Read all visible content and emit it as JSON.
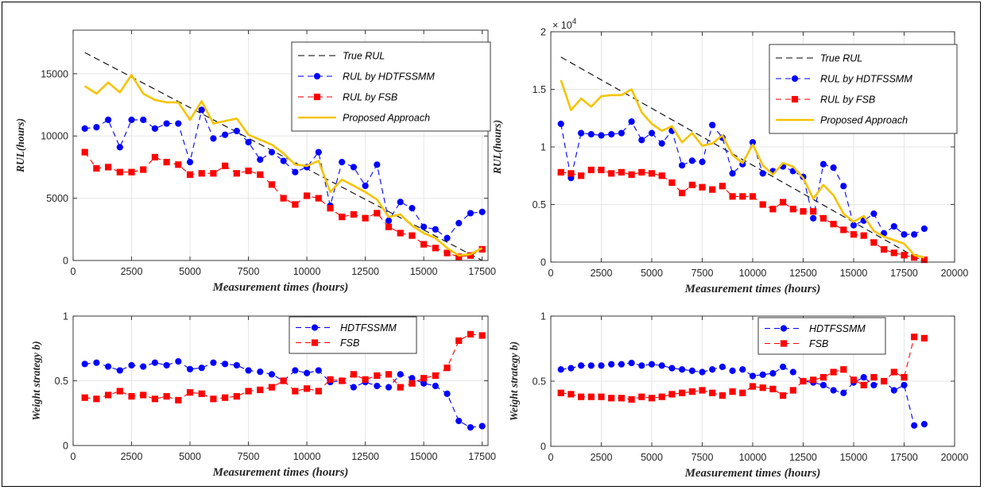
{
  "chart_data": [
    {
      "id": "top_left",
      "type": "line",
      "xlabel": "Measurement times (hours)",
      "ylabel": "RUL(hours)",
      "xlim": [
        0,
        17750
      ],
      "ylim": [
        0,
        18500
      ],
      "xticks": [
        0,
        2500,
        5000,
        7500,
        10000,
        12500,
        15000,
        17500
      ],
      "yticks": [
        0,
        5000,
        10000,
        15000
      ],
      "grid": true,
      "legend": "top-right",
      "series": [
        {
          "name": "True RUL",
          "color": "#000000",
          "style": "dashed",
          "marker": "none",
          "x": [
            500,
            17500
          ],
          "y": [
            16700,
            0
          ]
        },
        {
          "name": "RUL by HDTFSSMM",
          "color": "#0000ff",
          "style": "dashed",
          "marker": "circle",
          "x": [
            500,
            1000,
            1500,
            2000,
            2500,
            3000,
            3500,
            4000,
            4500,
            5000,
            5500,
            6000,
            6500,
            7000,
            7500,
            8000,
            8500,
            9000,
            9500,
            10000,
            10500,
            11000,
            11500,
            12000,
            12500,
            13000,
            13500,
            14000,
            14500,
            15000,
            15500,
            16000,
            16500,
            17000,
            17500
          ],
          "y": [
            10600,
            10700,
            11300,
            9100,
            11300,
            11300,
            10600,
            11000,
            11000,
            7900,
            12100,
            9800,
            10100,
            10400,
            9500,
            8100,
            8700,
            8000,
            7100,
            7500,
            8700,
            4400,
            7900,
            7500,
            6000,
            7700,
            3200,
            4700,
            4200,
            2700,
            2500,
            1800,
            3000,
            3800,
            3900
          ]
        },
        {
          "name": "RUL by FSB",
          "color": "#ff0000",
          "style": "dashed",
          "marker": "square",
          "x": [
            500,
            1000,
            1500,
            2000,
            2500,
            3000,
            3500,
            4000,
            4500,
            5000,
            5500,
            6000,
            6500,
            7000,
            7500,
            8000,
            8500,
            9000,
            9500,
            10000,
            10500,
            11000,
            11500,
            12000,
            12500,
            13000,
            13500,
            14000,
            14500,
            15000,
            15500,
            16000,
            16500,
            17000,
            17500
          ],
          "y": [
            8700,
            7400,
            7500,
            7100,
            7100,
            7300,
            8300,
            7900,
            7700,
            6900,
            7000,
            7000,
            7600,
            7000,
            7200,
            6900,
            6100,
            5000,
            4500,
            5200,
            5000,
            4200,
            3500,
            3700,
            3400,
            3800,
            2700,
            2200,
            2000,
            1300,
            1000,
            600,
            300,
            400,
            900
          ]
        },
        {
          "name": "Proposed Approach",
          "color": "#f5c400",
          "style": "solid",
          "marker": "none",
          "x": [
            500,
            1000,
            1500,
            2000,
            2500,
            3000,
            3500,
            4000,
            4500,
            5000,
            5500,
            6000,
            6500,
            7000,
            7500,
            8000,
            8500,
            9000,
            9500,
            10000,
            10500,
            11000,
            11500,
            12000,
            12500,
            13000,
            13500,
            14000,
            14500,
            15000,
            15500,
            16000,
            16500,
            17000,
            17500
          ],
          "y": [
            14000,
            13400,
            14300,
            13500,
            14900,
            13400,
            12900,
            12700,
            12700,
            11300,
            12800,
            11000,
            11200,
            11400,
            10100,
            9700,
            9300,
            8600,
            7700,
            7600,
            8000,
            5500,
            6500,
            6000,
            5500,
            4900,
            3500,
            3700,
            2800,
            2200,
            1800,
            1000,
            400,
            500,
            1000
          ]
        }
      ]
    },
    {
      "id": "top_right",
      "type": "line",
      "xlabel": "Measurement times (hours)",
      "ylabel": "RUL(hours)",
      "ylabel_multiplier": "× 10",
      "ylabel_multiplier_exp": "4",
      "xlim": [
        0,
        20000
      ],
      "ylim": [
        0,
        2
      ],
      "xticks": [
        0,
        2500,
        5000,
        7500,
        10000,
        12500,
        15000,
        17500,
        20000
      ],
      "yticks": [
        0,
        0.5,
        1,
        1.5,
        2
      ],
      "grid": true,
      "legend": "top-right",
      "series": [
        {
          "name": "True RUL",
          "color": "#000000",
          "style": "dashed",
          "marker": "none",
          "x": [
            500,
            18500
          ],
          "y": [
            1.78,
            0
          ]
        },
        {
          "name": "RUL by HDTFSSMM",
          "color": "#0000ff",
          "style": "dashed",
          "marker": "circle",
          "x": [
            500,
            1000,
            1500,
            2000,
            2500,
            3000,
            3500,
            4000,
            4500,
            5000,
            5500,
            6000,
            6500,
            7000,
            7500,
            8000,
            8500,
            9000,
            9500,
            10000,
            10500,
            11000,
            11500,
            12000,
            12500,
            13000,
            13500,
            14000,
            14500,
            15000,
            15500,
            16000,
            16500,
            17000,
            17500,
            18000,
            18500
          ],
          "y": [
            1.2,
            0.73,
            1.12,
            1.11,
            1.1,
            1.11,
            1.12,
            1.22,
            1.06,
            1.12,
            1.03,
            1.14,
            0.84,
            0.88,
            0.87,
            1.19,
            1.08,
            0.77,
            0.85,
            1.04,
            0.77,
            0.79,
            0.83,
            0.79,
            0.74,
            0.38,
            0.85,
            0.82,
            0.66,
            0.32,
            0.36,
            0.42,
            0.25,
            0.31,
            0.24,
            0.24,
            0.29
          ]
        },
        {
          "name": "RUL by FSB",
          "color": "#ff0000",
          "style": "dashed",
          "marker": "square",
          "x": [
            500,
            1000,
            1500,
            2000,
            2500,
            3000,
            3500,
            4000,
            4500,
            5000,
            5500,
            6000,
            6500,
            7000,
            7500,
            8000,
            8500,
            9000,
            9500,
            10000,
            10500,
            11000,
            11500,
            12000,
            12500,
            13000,
            13500,
            14000,
            14500,
            15000,
            15500,
            16000,
            16500,
            17000,
            17500,
            18000,
            18500
          ],
          "y": [
            0.78,
            0.77,
            0.75,
            0.8,
            0.8,
            0.77,
            0.78,
            0.76,
            0.78,
            0.77,
            0.75,
            0.69,
            0.6,
            0.67,
            0.65,
            0.63,
            0.66,
            0.57,
            0.57,
            0.57,
            0.5,
            0.46,
            0.52,
            0.46,
            0.44,
            0.44,
            0.38,
            0.33,
            0.28,
            0.24,
            0.23,
            0.17,
            0.11,
            0.08,
            0.06,
            0.04,
            0.02
          ]
        },
        {
          "name": "Proposed Approach",
          "color": "#f5c400",
          "style": "solid",
          "marker": "none",
          "x": [
            500,
            1000,
            1500,
            2000,
            2500,
            3000,
            3500,
            4000,
            4500,
            5000,
            5500,
            6000,
            6500,
            7000,
            7500,
            8000,
            8500,
            9000,
            9500,
            10000,
            10500,
            11000,
            11500,
            12000,
            12500,
            13000,
            13500,
            14000,
            14500,
            15000,
            15500,
            16000,
            16500,
            17000,
            17500,
            18000,
            18500
          ],
          "y": [
            1.58,
            1.32,
            1.42,
            1.35,
            1.44,
            1.45,
            1.45,
            1.5,
            1.3,
            1.2,
            1.14,
            1.18,
            1.04,
            1.12,
            1.01,
            1.03,
            1.1,
            0.93,
            0.86,
            1.02,
            0.84,
            0.76,
            0.86,
            0.83,
            0.73,
            0.55,
            0.67,
            0.58,
            0.42,
            0.35,
            0.4,
            0.27,
            0.22,
            0.19,
            0.16,
            0.06,
            0.04
          ]
        }
      ]
    },
    {
      "id": "bottom_left",
      "type": "line",
      "xlabel": "Measurement times (hours)",
      "ylabel": "Weight strategy b)",
      "xlim": [
        0,
        17750
      ],
      "ylim": [
        0,
        1
      ],
      "xticks": [
        0,
        2500,
        5000,
        7500,
        10000,
        12500,
        15000,
        17500
      ],
      "yticks": [
        0,
        0.5,
        1
      ],
      "grid": true,
      "legend": "top-right",
      "series": [
        {
          "name": "HDTFSSMM",
          "color": "#0000ff",
          "style": "dashed",
          "marker": "circle",
          "x": [
            500,
            1000,
            1500,
            2000,
            2500,
            3000,
            3500,
            4000,
            4500,
            5000,
            5500,
            6000,
            6500,
            7000,
            7500,
            8000,
            8500,
            9000,
            9500,
            10000,
            10500,
            11000,
            11500,
            12000,
            12500,
            13000,
            13500,
            14000,
            14500,
            15000,
            15500,
            16000,
            16500,
            17000,
            17500
          ],
          "y": [
            0.63,
            0.64,
            0.61,
            0.58,
            0.62,
            0.61,
            0.64,
            0.62,
            0.65,
            0.59,
            0.6,
            0.64,
            0.63,
            0.62,
            0.58,
            0.57,
            0.55,
            0.5,
            0.58,
            0.56,
            0.58,
            0.49,
            0.5,
            0.45,
            0.49,
            0.46,
            0.45,
            0.55,
            0.52,
            0.48,
            0.46,
            0.4,
            0.19,
            0.14,
            0.15
          ]
        },
        {
          "name": "FSB",
          "color": "#ff0000",
          "style": "dashed",
          "marker": "square",
          "x": [
            500,
            1000,
            1500,
            2000,
            2500,
            3000,
            3500,
            4000,
            4500,
            5000,
            5500,
            6000,
            6500,
            7000,
            7500,
            8000,
            8500,
            9000,
            9500,
            10000,
            10500,
            11000,
            11500,
            12000,
            12500,
            13000,
            13500,
            14000,
            14500,
            15000,
            15500,
            16000,
            16500,
            17000,
            17500
          ],
          "y": [
            0.37,
            0.36,
            0.39,
            0.42,
            0.38,
            0.39,
            0.36,
            0.38,
            0.35,
            0.41,
            0.4,
            0.36,
            0.37,
            0.38,
            0.42,
            0.43,
            0.45,
            0.5,
            0.42,
            0.44,
            0.42,
            0.51,
            0.5,
            0.55,
            0.51,
            0.54,
            0.55,
            0.45,
            0.48,
            0.52,
            0.54,
            0.6,
            0.81,
            0.86,
            0.85
          ]
        }
      ]
    },
    {
      "id": "bottom_right",
      "type": "line",
      "xlabel": "Measurement times (hours)",
      "ylabel": "Weight strategy b)",
      "xlim": [
        0,
        20000
      ],
      "ylim": [
        0,
        1
      ],
      "xticks": [
        0,
        2500,
        5000,
        7500,
        10000,
        12500,
        15000,
        17500,
        20000
      ],
      "yticks": [
        0,
        0.5,
        1
      ],
      "grid": true,
      "legend": "top-right",
      "series": [
        {
          "name": "HDTFSSMM",
          "color": "#0000ff",
          "style": "dashed",
          "marker": "circle",
          "x": [
            500,
            1000,
            1500,
            2000,
            2500,
            3000,
            3500,
            4000,
            4500,
            5000,
            5500,
            6000,
            6500,
            7000,
            7500,
            8000,
            8500,
            9000,
            9500,
            10000,
            10500,
            11000,
            11500,
            12000,
            12500,
            13000,
            13500,
            14000,
            14500,
            15000,
            15500,
            16000,
            16500,
            17000,
            17500,
            18000,
            18500
          ],
          "y": [
            0.59,
            0.6,
            0.62,
            0.62,
            0.62,
            0.63,
            0.63,
            0.64,
            0.62,
            0.63,
            0.62,
            0.6,
            0.59,
            0.58,
            0.57,
            0.59,
            0.61,
            0.58,
            0.59,
            0.54,
            0.55,
            0.56,
            0.61,
            0.57,
            0.5,
            0.49,
            0.47,
            0.43,
            0.41,
            0.49,
            0.53,
            0.47,
            0.5,
            0.43,
            0.47,
            0.16,
            0.17
          ]
        },
        {
          "name": "FSB",
          "color": "#ff0000",
          "style": "dashed",
          "marker": "square",
          "x": [
            500,
            1000,
            1500,
            2000,
            2500,
            3000,
            3500,
            4000,
            4500,
            5000,
            5500,
            6000,
            6500,
            7000,
            7500,
            8000,
            8500,
            9000,
            9500,
            10000,
            10500,
            11000,
            11500,
            12000,
            12500,
            13000,
            13500,
            14000,
            14500,
            15000,
            15500,
            16000,
            16500,
            17000,
            17500,
            18000,
            18500
          ],
          "y": [
            0.41,
            0.4,
            0.38,
            0.38,
            0.38,
            0.37,
            0.37,
            0.36,
            0.38,
            0.37,
            0.38,
            0.4,
            0.41,
            0.42,
            0.43,
            0.41,
            0.39,
            0.42,
            0.41,
            0.46,
            0.45,
            0.44,
            0.39,
            0.43,
            0.5,
            0.51,
            0.53,
            0.57,
            0.59,
            0.51,
            0.47,
            0.53,
            0.5,
            0.57,
            0.53,
            0.84,
            0.83
          ]
        }
      ]
    }
  ]
}
